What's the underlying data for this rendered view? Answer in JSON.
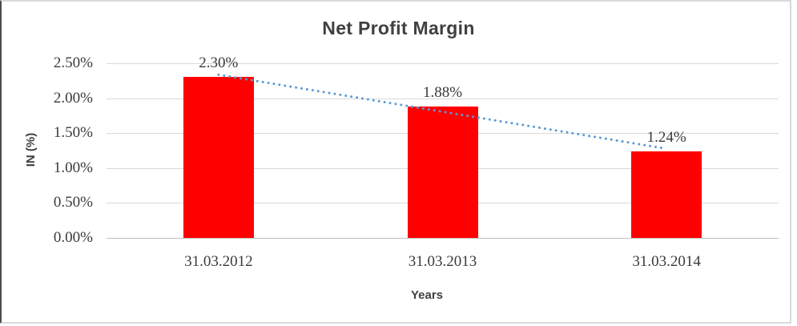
{
  "chart_data": {
    "type": "bar",
    "title": "Net Profit Margin",
    "categories": [
      "31.03.2012",
      "31.03.2013",
      "31.03.2014"
    ],
    "values": [
      2.3,
      1.88,
      1.24
    ],
    "data_labels": [
      "2.30%",
      "1.88%",
      "1.24%"
    ],
    "xlabel": "Years",
    "ylabel": "IN (%)",
    "ylim": [
      0,
      2.5
    ],
    "yticks": [
      0,
      0.5,
      1.0,
      1.5,
      2.0,
      2.5
    ],
    "ytick_labels": [
      "0.00%",
      "0.50%",
      "1.00%",
      "1.50%",
      "2.00%",
      "2.50%"
    ],
    "grid": true,
    "legend": false,
    "bar_color": "#ff0000",
    "text_color": "#3a3a3a",
    "title_color": "#404040",
    "gridline_color": "#d9d9d9",
    "axis_line_color": "#bfbfbf",
    "trendline": {
      "type": "linear",
      "style": "dotted",
      "color": "#5b9bd5"
    }
  }
}
